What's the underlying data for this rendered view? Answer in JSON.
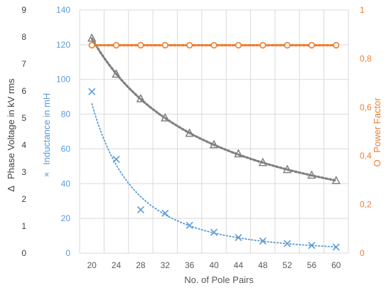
{
  "chart_data": {
    "type": "scatter",
    "x": [
      20,
      24,
      28,
      32,
      36,
      40,
      44,
      48,
      52,
      56,
      60
    ],
    "xlabel": "No. of Pole Pairs",
    "xlim": [
      18,
      62
    ],
    "grid": true,
    "axes": {
      "voltage": {
        "label": "Phase Voltage in kV rms",
        "symbol": "Δ",
        "ylim": [
          0,
          9
        ],
        "ticks": [
          "0",
          "1",
          "2",
          "3",
          "4",
          "5",
          "6",
          "7",
          "8",
          "9"
        ],
        "color": "#404040"
      },
      "inductance": {
        "label": "Inductance in mH",
        "symbol": "×",
        "ylim": [
          0,
          140
        ],
        "ticks": [
          "0",
          "20",
          "40",
          "60",
          "80",
          "100",
          "120",
          "140"
        ],
        "color": "#5B9BD5"
      },
      "power_factor": {
        "label": "Power Factor",
        "symbol": "O",
        "ylim": [
          0,
          1
        ],
        "ticks": [
          "0",
          "0,2",
          "0,4",
          "0,6",
          "0,8",
          "1"
        ],
        "color": "#ED7D31"
      }
    },
    "series": [
      {
        "axis": "voltage",
        "marker": "triangle",
        "color": "#808080",
        "values": [
          7.95,
          6.62,
          5.71,
          5.0,
          4.43,
          4.01,
          3.67,
          3.35,
          3.09,
          2.88,
          2.68
        ],
        "trend": "dotted"
      },
      {
        "axis": "inductance",
        "marker": "x",
        "color": "#5B9BD5",
        "values": [
          93,
          54,
          25,
          23,
          16,
          12,
          9,
          7,
          5.5,
          4.5,
          3.5
        ],
        "trend": "dotted"
      },
      {
        "axis": "power_factor",
        "marker": "circle",
        "color": "#ED7D31",
        "values": [
          0.855,
          0.855,
          0.855,
          0.855,
          0.855,
          0.855,
          0.855,
          0.855,
          0.855,
          0.855,
          0.855
        ],
        "trend": "dotted"
      }
    ]
  }
}
